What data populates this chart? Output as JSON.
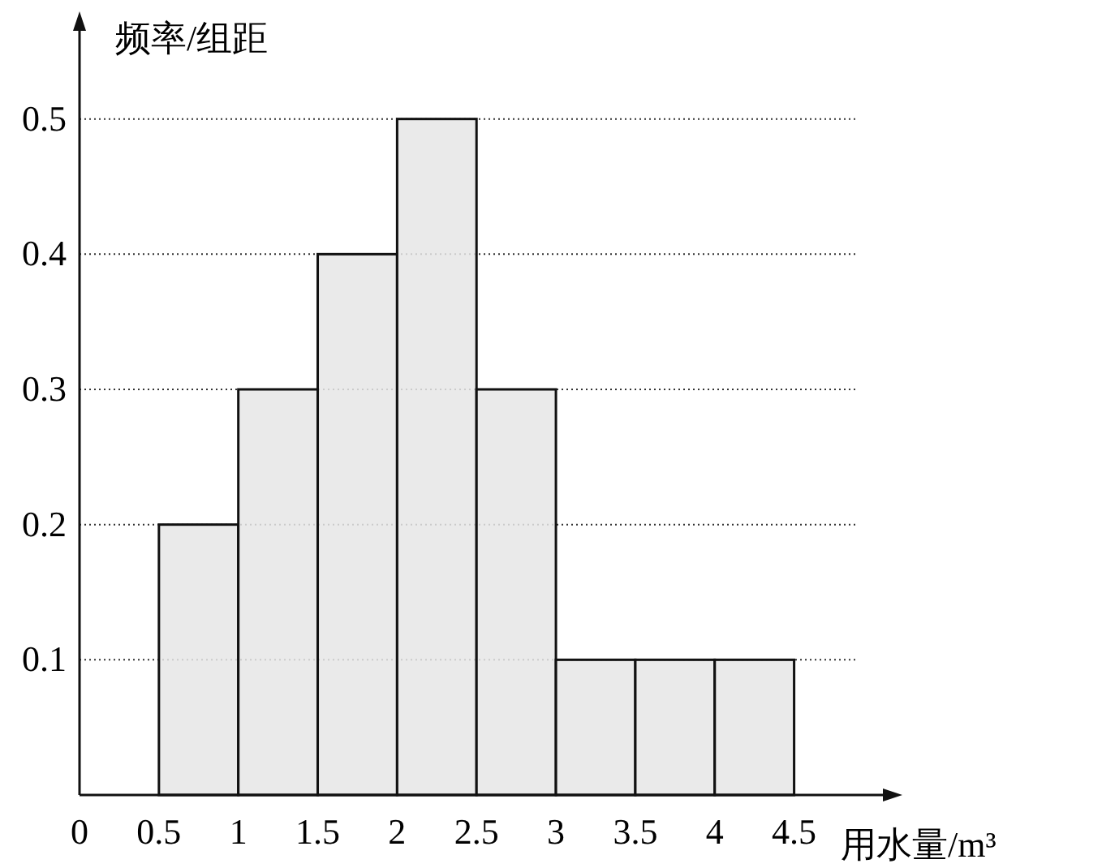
{
  "chart_data": {
    "type": "histogram",
    "ylabel": "频率/组距",
    "xlabel": "用水量/m³",
    "bins": [
      0.5,
      1,
      1.5,
      2,
      2.5,
      3,
      3.5,
      4,
      4.5
    ],
    "values": [
      0.2,
      0.3,
      0.4,
      0.5,
      0.3,
      0.1,
      0.1,
      0.1
    ],
    "color": "#e6e6e6",
    "xlim": [
      0,
      5.1
    ],
    "ylim": [
      0,
      0.57
    ],
    "xticks": [
      0,
      0.5,
      1,
      1.5,
      2,
      2.5,
      3,
      3.5,
      4,
      4.5
    ],
    "yticks": [
      0.1,
      0.2,
      0.3,
      0.4,
      0.5
    ],
    "grid": "y"
  }
}
